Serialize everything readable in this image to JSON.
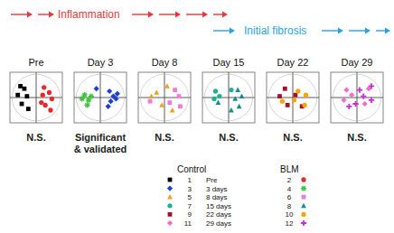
{
  "phases": [
    {
      "label": "Inflammation",
      "color": "#e8383d"
    },
    {
      "label": "Initial fibrosis",
      "color": "#29a3dc"
    }
  ],
  "legend": {
    "headers": [
      "Control",
      "BLM"
    ],
    "labels": [
      "Pre",
      "3 days",
      "8 days",
      "15 days",
      "22 days",
      "29 days"
    ]
  },
  "chart_data": [
    {
      "type": "scatter",
      "title": "Pre",
      "annotation": [
        "N.S."
      ],
      "xlim": [
        -1,
        1
      ],
      "ylim": [
        -1,
        1
      ],
      "xticks": [
        0
      ],
      "yticks": [
        0
      ],
      "tick_labels": false,
      "series": [
        {
          "name": "1",
          "color": "#000000",
          "marker": "square",
          "x": [
            -0.6,
            -0.45,
            -0.7,
            -0.35,
            -0.55,
            -0.3
          ],
          "y": [
            0.45,
            0.35,
            0.1,
            0.05,
            -0.25,
            -0.45
          ]
        },
        {
          "name": "2",
          "color": "#e8262c",
          "marker": "circle",
          "x": [
            0.3,
            0.5,
            0.25,
            0.6,
            0.35,
            0.55,
            0.2
          ],
          "y": [
            0.4,
            0.2,
            0.1,
            -0.05,
            -0.3,
            -0.5,
            -0.2
          ]
        }
      ]
    },
    {
      "type": "scatter",
      "title": "Day 3",
      "annotation": [
        "Significant",
        "& validated"
      ],
      "xlim": [
        -1,
        1
      ],
      "ylim": [
        -1,
        1
      ],
      "xticks": [
        0
      ],
      "yticks": [
        0
      ],
      "tick_labels": false,
      "series": [
        {
          "name": "3",
          "color": "#1f3fd1",
          "marker": "diamond",
          "x": [
            0.35,
            0.5,
            0.65,
            0.4,
            0.6,
            0.3,
            -0.15
          ],
          "y": [
            0.25,
            0.05,
            0.15,
            -0.15,
            -0.05,
            -0.35,
            0.35
          ]
        },
        {
          "name": "4",
          "color": "#3cc43c",
          "marker": "star",
          "x": [
            -0.6,
            -0.45,
            -0.7,
            -0.5,
            -0.35
          ],
          "y": [
            0.1,
            -0.1,
            -0.05,
            -0.3,
            0.05
          ]
        }
      ]
    },
    {
      "type": "scatter",
      "title": "Day 8",
      "annotation": [
        "N.S."
      ],
      "xlim": [
        -1,
        1
      ],
      "ylim": [
        -1,
        1
      ],
      "xticks": [
        0
      ],
      "yticks": [
        0
      ],
      "tick_labels": false,
      "series": [
        {
          "name": "5",
          "color": "#f0a020",
          "marker": "triangle",
          "x": [
            -0.5,
            -0.3,
            0.1,
            -0.1,
            0.3
          ],
          "y": [
            0.05,
            0.2,
            0.45,
            -0.3,
            -0.5
          ]
        },
        {
          "name": "6",
          "color": "#f07ad8",
          "marker": "square",
          "x": [
            0.4,
            0.55,
            -0.55,
            0.2,
            0.6
          ],
          "y": [
            0.3,
            0.05,
            -0.15,
            -0.2,
            -0.35
          ]
        }
      ]
    },
    {
      "type": "scatter",
      "title": "Day 15",
      "annotation": [
        "N.S."
      ],
      "xlim": [
        -1,
        1
      ],
      "ylim": [
        -1,
        1
      ],
      "xticks": [
        0
      ],
      "yticks": [
        0
      ],
      "tick_labels": false,
      "series": [
        {
          "name": "7",
          "color": "#22b08e",
          "marker": "circle",
          "x": [
            -0.5,
            -0.35,
            -0.55,
            0.1
          ],
          "y": [
            0.25,
            0.05,
            -0.05,
            0.3
          ]
        },
        {
          "name": "8",
          "color": "#138c92",
          "marker": "triangle",
          "x": [
            0.35,
            0.5,
            0.25,
            -0.4,
            0.4,
            0.1
          ],
          "y": [
            0.3,
            0.05,
            -0.05,
            -0.2,
            -0.35,
            -0.5
          ]
        }
      ]
    },
    {
      "type": "scatter",
      "title": "Day 22",
      "annotation": [
        "N.S."
      ],
      "xlim": [
        -1,
        1
      ],
      "ylim": [
        -1,
        1
      ],
      "xticks": [
        0
      ],
      "yticks": [
        0
      ],
      "tick_labels": false,
      "series": [
        {
          "name": "9",
          "color": "#a3122a",
          "marker": "square",
          "x": [
            -0.3,
            -0.5,
            0.1,
            0.35,
            -0.2
          ],
          "y": [
            0.35,
            0.05,
            0.1,
            -0.35,
            -0.3
          ]
        },
        {
          "name": "10",
          "color": "#f5a400",
          "marker": "circle",
          "x": [
            0.2,
            0.5,
            -0.4,
            0.05,
            0.45
          ],
          "y": [
            0.25,
            0.1,
            -0.15,
            -0.1,
            -0.3
          ]
        }
      ]
    },
    {
      "type": "scatter",
      "title": "Day 29",
      "annotation": [
        "N.S."
      ],
      "xlim": [
        -1,
        1
      ],
      "ylim": [
        -1,
        1
      ],
      "xticks": [
        0
      ],
      "yticks": [
        0
      ],
      "tick_labels": false,
      "series": [
        {
          "name": "11",
          "color": "#f06ccf",
          "marker": "diamond",
          "x": [
            -0.4,
            -0.2,
            0.45,
            -0.5,
            0.3
          ],
          "y": [
            0.3,
            0.1,
            0.35,
            -0.1,
            -0.25
          ]
        },
        {
          "name": "12",
          "color": "#d22ad0",
          "marker": "plus",
          "x": [
            0.1,
            0.25,
            -0.3,
            0.55,
            -0.05,
            0.55
          ],
          "y": [
            0.3,
            0.05,
            -0.35,
            -0.1,
            -0.25,
            0.45
          ]
        }
      ]
    }
  ]
}
